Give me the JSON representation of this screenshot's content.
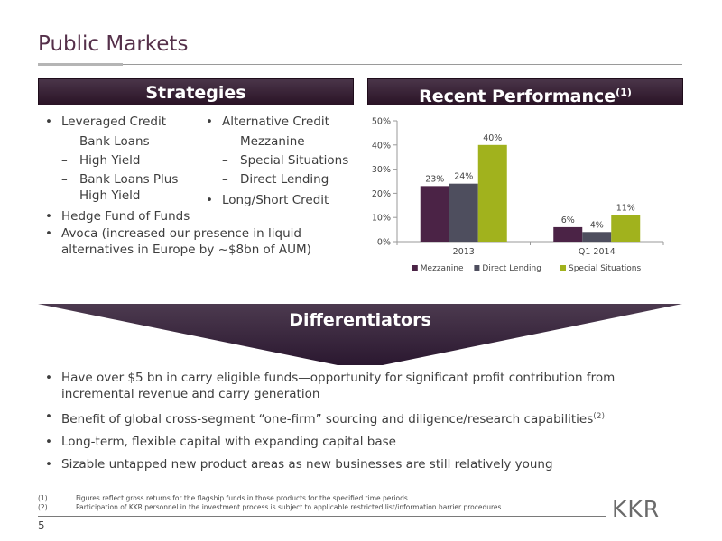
{
  "title": "Public Markets",
  "strategies": {
    "header": "Strategies",
    "col1": {
      "item1": "Leveraged Credit",
      "sub1": "Bank Loans",
      "sub2": "High Yield",
      "sub3": "Bank Loans Plus High Yield",
      "item2": "Hedge Fund of Funds"
    },
    "col2": {
      "item1": "Alternative Credit",
      "sub1": "Mezzanine",
      "sub2": "Special Situations",
      "sub3": "Direct Lending",
      "item2": "Long/Short Credit"
    },
    "full": "Avoca (increased our presence in liquid alternatives in Europe by ~$8bn of AUM)"
  },
  "performance": {
    "header": "Recent Performance",
    "header_note": "(1)"
  },
  "chart_data": {
    "type": "bar",
    "categories": [
      "2013",
      "Q1 2014"
    ],
    "series": [
      {
        "name": "Mezzanine",
        "values": [
          23,
          6
        ],
        "labels": [
          "23%",
          "6%"
        ],
        "color": "#4b2346"
      },
      {
        "name": "Direct Lending",
        "values": [
          24,
          4
        ],
        "labels": [
          "24%",
          "4%"
        ],
        "color": "#4e4e5e"
      },
      {
        "name": "Special Situations",
        "values": [
          40,
          11
        ],
        "labels": [
          "40%",
          "11%"
        ],
        "color": "#a1b21d"
      }
    ],
    "yticks": [
      "0%",
      "10%",
      "20%",
      "30%",
      "40%",
      "50%"
    ],
    "ylim": [
      0,
      50
    ],
    "legend": "bottom",
    "grid": false
  },
  "differentiators": {
    "header": "Differentiators",
    "b1": "Have over $5 bn in carry eligible funds—opportunity for significant profit contribution from incremental revenue and carry generation",
    "b2": "Benefit of global cross-segment “one-firm” sourcing and diligence/research capabilities",
    "b2_note": "(2)",
    "b3": "Long-term, flexible capital with expanding capital base",
    "b4": "Sizable untapped new product areas as new businesses are still relatively young"
  },
  "footnotes": {
    "n1": "(1)",
    "t1": "Figures reflect gross returns for the flagship funds in those products for the specified time periods.",
    "n2": "(2)",
    "t2": "Participation of KKR personnel in the investment process is subject to applicable restricted list/information barrier procedures."
  },
  "logo": "KKR",
  "page_number": "5"
}
